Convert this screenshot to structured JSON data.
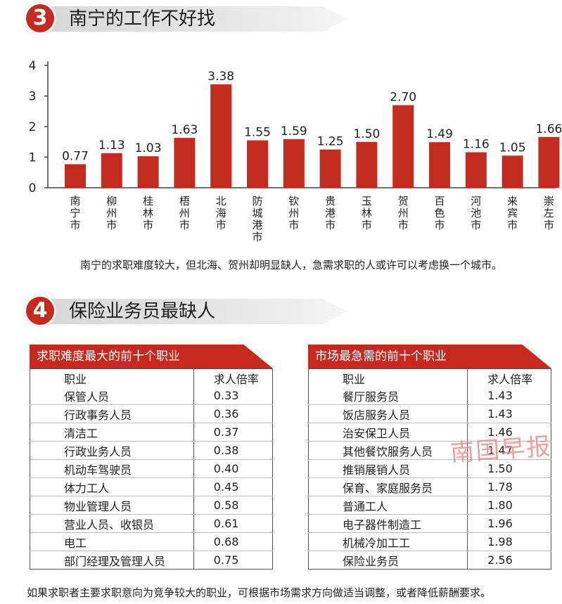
{
  "section3": {
    "number": "3",
    "title": "南宁的工作不好找"
  },
  "chart_data": {
    "type": "bar",
    "categories": [
      "南宁市",
      "柳州市",
      "桂林市",
      "梧州市",
      "北海市",
      "防城港市",
      "钦州市",
      "贵港市",
      "玉林市",
      "贺州市",
      "百色市",
      "河池市",
      "来宾市",
      "崇左市"
    ],
    "values": [
      0.77,
      1.13,
      1.03,
      1.63,
      3.38,
      1.55,
      1.59,
      1.25,
      1.5,
      2.7,
      1.49,
      1.16,
      1.05,
      1.66
    ],
    "value_labels": [
      "0.77",
      "1.13",
      "1.03",
      "1.63",
      "3.38",
      "1.55",
      "1.59",
      "1.25",
      "1.50",
      "2.70",
      "1.49",
      "1.16",
      "1.05",
      "1.66"
    ],
    "y_ticks": [
      "0",
      "1",
      "2",
      "3",
      "4"
    ],
    "ylim": [
      0,
      4
    ],
    "bar_color": "#c42b1f",
    "grid": false
  },
  "caption": "南宁的求职难度较大，但北海、贺州却明显缺人，急需求职的人或许可以考虑换一个城市。",
  "section4": {
    "number": "4",
    "title": "保险业务员最缺人"
  },
  "table_left": {
    "title": "求职难度最大的前十个职业",
    "col1": "职业",
    "col2": "求人倍率",
    "rows": [
      {
        "job": "保管人员",
        "ratio": "0.33"
      },
      {
        "job": "行政事务人员",
        "ratio": "0.36"
      },
      {
        "job": "清洁工",
        "ratio": "0.37"
      },
      {
        "job": "行政业务人员",
        "ratio": "0.38"
      },
      {
        "job": "机动车驾驶员",
        "ratio": "0.40"
      },
      {
        "job": "体力工人",
        "ratio": "0.45"
      },
      {
        "job": "物业管理人员",
        "ratio": "0.58"
      },
      {
        "job": "营业人员、收银员",
        "ratio": "0.61"
      },
      {
        "job": "电工",
        "ratio": "0.68"
      },
      {
        "job": "部门经理及管理人员",
        "ratio": "0.75"
      }
    ]
  },
  "table_right": {
    "title": "市场最急需的前十个职业",
    "col1": "职业",
    "col2": "求人倍率",
    "rows": [
      {
        "job": "餐厅服务员",
        "ratio": "1.43"
      },
      {
        "job": "饭店服务人员",
        "ratio": "1.43"
      },
      {
        "job": "治安保卫人员",
        "ratio": "1.46"
      },
      {
        "job": "其他餐饮服务人员",
        "ratio": "1.47"
      },
      {
        "job": "推销展销人员",
        "ratio": "1.50"
      },
      {
        "job": "保育、家庭服务员",
        "ratio": "1.78"
      },
      {
        "job": "普通工人",
        "ratio": "1.80"
      },
      {
        "job": "电子器件制造工",
        "ratio": "1.96"
      },
      {
        "job": "机械冷加工工",
        "ratio": "1.98"
      },
      {
        "job": "保险业务员",
        "ratio": "2.56"
      }
    ]
  },
  "watermark": "南国早报",
  "footer": "如果求职者主要求职意向为竞争较大的职业，可根据市场需求方向做适当调整，或者降低薪酬要求。"
}
